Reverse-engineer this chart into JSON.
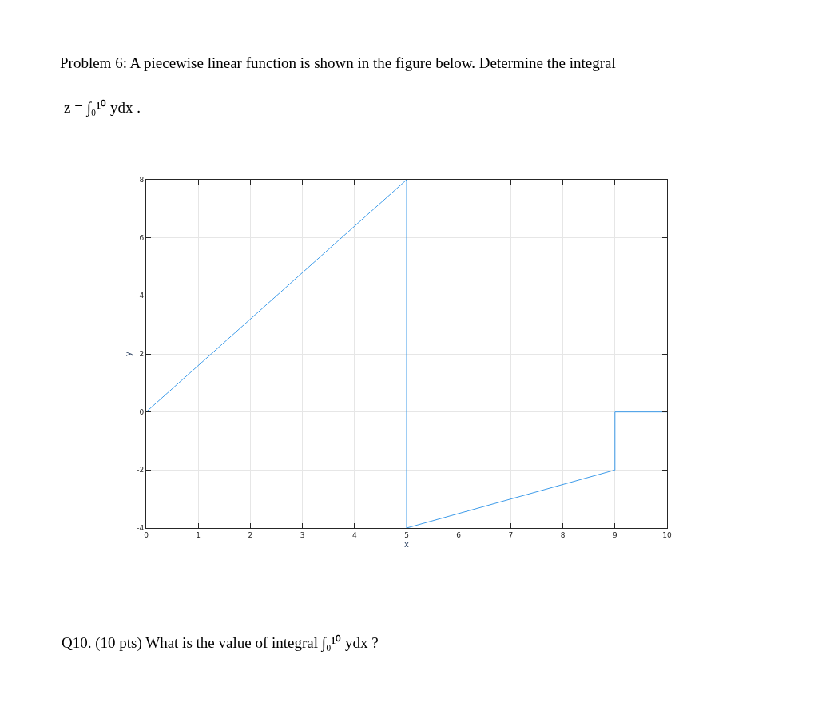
{
  "chart_data": {
    "type": "line",
    "title": "Problem 6: A piecewise linear function is shown in the figure below. Determine the integral",
    "annotations": [
      "z = ∫₀¹⁰ ydx .",
      "Q10. (10 pts) What is the value of integral ∫₀¹⁰ ydx ?"
    ],
    "xlabel": "x",
    "ylabel": "y",
    "series": [
      {
        "color": "#3d9be9",
        "x": [
          0,
          5,
          5,
          9,
          9,
          10
        ],
        "values": [
          0,
          8,
          -4,
          -2,
          0,
          0
        ]
      }
    ],
    "xlim": [
      0,
      10
    ],
    "xticks": [
      0,
      1,
      2,
      3,
      4,
      5,
      6,
      7,
      8,
      9,
      10
    ],
    "ylim": [
      -4,
      8
    ],
    "yticks": [
      -4,
      -2,
      0,
      2,
      4,
      6,
      8
    ],
    "grid": true,
    "marker": "none",
    "line_style": "solid"
  }
}
